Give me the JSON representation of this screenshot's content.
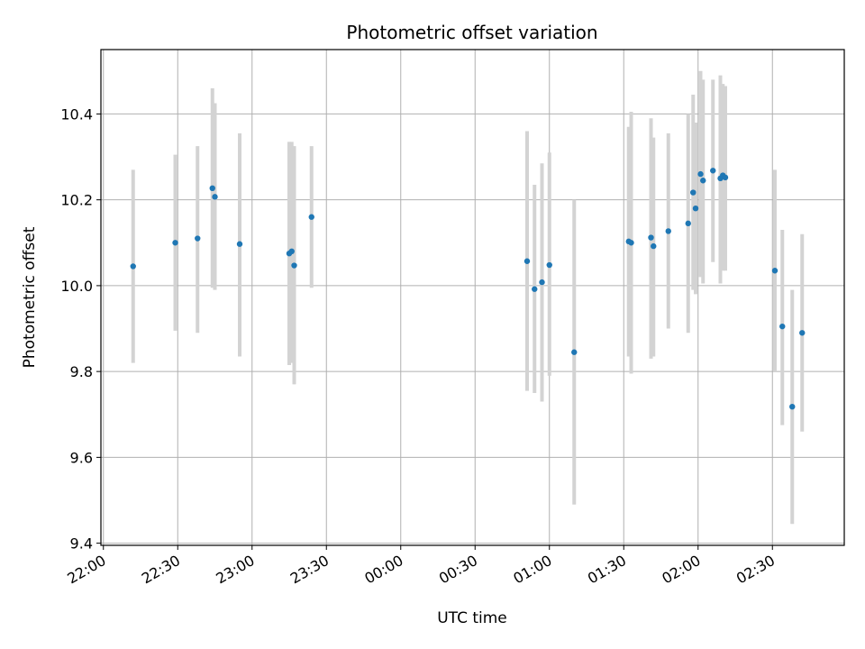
{
  "chart_data": {
    "type": "scatter",
    "title": "Photometric offset variation",
    "xlabel": "UTC time",
    "ylabel": "Photometric offset",
    "x_unit": "hours relative to 00:00 UTC",
    "xlim": [
      "21:59",
      "02:59"
    ],
    "ylim": [
      9.395,
      10.55
    ],
    "grid": true,
    "point_color": "#1f77b4",
    "errorbar_color": "#d3d3d3",
    "x_ticks": [
      "22:00",
      "22:30",
      "23:00",
      "23:30",
      "00:00",
      "00:30",
      "01:00",
      "01:30",
      "02:00",
      "02:30"
    ],
    "y_ticks": [
      "9.4",
      "9.6",
      "9.8",
      "10.0",
      "10.2",
      "10.4"
    ],
    "points": [
      {
        "t": "22:12",
        "y": 10.045,
        "lo": 9.82,
        "hi": 10.27
      },
      {
        "t": "22:29",
        "y": 10.1,
        "lo": 9.895,
        "hi": 10.305
      },
      {
        "t": "22:38",
        "y": 10.11,
        "lo": 9.89,
        "hi": 10.325
      },
      {
        "t": "22:44",
        "y": 10.227,
        "lo": 9.995,
        "hi": 10.46
      },
      {
        "t": "22:45",
        "y": 10.207,
        "lo": 9.99,
        "hi": 10.425
      },
      {
        "t": "22:55",
        "y": 10.097,
        "lo": 9.835,
        "hi": 10.355
      },
      {
        "t": "23:15",
        "y": 10.075,
        "lo": 9.815,
        "hi": 10.335
      },
      {
        "t": "23:16",
        "y": 10.08,
        "lo": 9.82,
        "hi": 10.335
      },
      {
        "t": "23:17",
        "y": 10.047,
        "lo": 9.77,
        "hi": 10.325
      },
      {
        "t": "23:24",
        "y": 10.16,
        "lo": 9.995,
        "hi": 10.325
      },
      {
        "t": "00:51",
        "y": 10.057,
        "lo": 9.755,
        "hi": 10.36
      },
      {
        "t": "00:54",
        "y": 9.992,
        "lo": 9.75,
        "hi": 10.235
      },
      {
        "t": "00:57",
        "y": 10.008,
        "lo": 9.73,
        "hi": 10.285
      },
      {
        "t": "01:00",
        "y": 10.048,
        "lo": 9.79,
        "hi": 10.31
      },
      {
        "t": "01:10",
        "y": 9.845,
        "lo": 9.49,
        "hi": 10.2
      },
      {
        "t": "01:32",
        "y": 10.103,
        "lo": 9.835,
        "hi": 10.37
      },
      {
        "t": "01:33",
        "y": 10.1,
        "lo": 9.795,
        "hi": 10.405
      },
      {
        "t": "01:41",
        "y": 10.112,
        "lo": 9.83,
        "hi": 10.39
      },
      {
        "t": "01:42",
        "y": 10.092,
        "lo": 9.835,
        "hi": 10.345
      },
      {
        "t": "01:48",
        "y": 10.127,
        "lo": 9.9,
        "hi": 10.355
      },
      {
        "t": "01:56",
        "y": 10.145,
        "lo": 9.89,
        "hi": 10.4
      },
      {
        "t": "01:58",
        "y": 10.217,
        "lo": 9.99,
        "hi": 10.445
      },
      {
        "t": "01:59",
        "y": 10.18,
        "lo": 9.98,
        "hi": 10.38
      },
      {
        "t": "02:01",
        "y": 10.26,
        "lo": 10.02,
        "hi": 10.5
      },
      {
        "t": "02:02",
        "y": 10.245,
        "lo": 10.005,
        "hi": 10.48
      },
      {
        "t": "02:06",
        "y": 10.268,
        "lo": 10.055,
        "hi": 10.48
      },
      {
        "t": "02:09",
        "y": 10.25,
        "lo": 10.005,
        "hi": 10.49
      },
      {
        "t": "02:10",
        "y": 10.257,
        "lo": 10.035,
        "hi": 10.47
      },
      {
        "t": "02:11",
        "y": 10.252,
        "lo": 10.035,
        "hi": 10.465
      },
      {
        "t": "02:31",
        "y": 10.035,
        "lo": 9.8,
        "hi": 10.27
      },
      {
        "t": "02:34",
        "y": 9.905,
        "lo": 9.675,
        "hi": 10.13
      },
      {
        "t": "02:38",
        "y": 9.718,
        "lo": 9.445,
        "hi": 9.99
      },
      {
        "t": "02:42",
        "y": 9.89,
        "lo": 9.66,
        "hi": 10.12
      }
    ]
  }
}
